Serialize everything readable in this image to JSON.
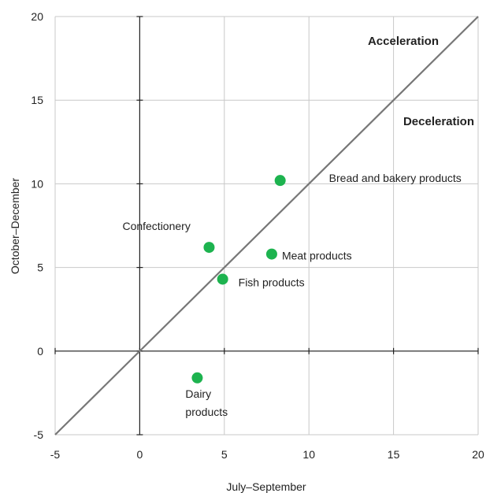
{
  "chart_data": {
    "type": "scatter",
    "title": "",
    "xlabel": "July–September",
    "ylabel": "October–December",
    "xlim": [
      -5,
      20
    ],
    "ylim": [
      -5,
      20
    ],
    "x_ticks": [
      "-5",
      "0",
      "5",
      "10",
      "15",
      "20"
    ],
    "y_ticks": [
      "-5",
      "0",
      "5",
      "10",
      "15",
      "20"
    ],
    "grid": true,
    "reference_line": "y = x",
    "point_color": "#1db34f",
    "line_color": "#777777",
    "region_labels": [
      "Acceleration",
      "Deceleration"
    ],
    "points": [
      {
        "label": [
          "Bread and bakery products"
        ],
        "x": 8.3,
        "y": 10.2
      },
      {
        "label": [
          "Confectionery"
        ],
        "x": 4.1,
        "y": 6.2
      },
      {
        "label": [
          "Meat products"
        ],
        "x": 7.8,
        "y": 5.8
      },
      {
        "label": [
          "Fish products"
        ],
        "x": 4.9,
        "y": 4.3
      },
      {
        "label": [
          "Dairy",
          "products"
        ],
        "x": 3.4,
        "y": -1.6
      }
    ]
  }
}
